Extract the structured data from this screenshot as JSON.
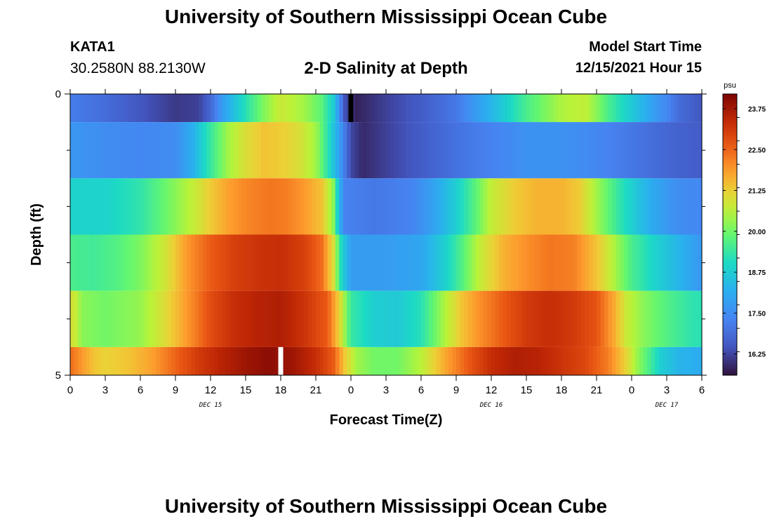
{
  "page": {
    "title_top": "University of Southern Mississippi Ocean Cube",
    "title_bottom": "University of Southern Mississippi Ocean Cube",
    "station": {
      "name": "KATA1",
      "coords": "30.2580N  88.2130W"
    },
    "subtitle": "2-D Salinity at Depth",
    "model": {
      "label": "Model Start Time",
      "time": "12/15/2021 Hour 15"
    }
  },
  "chart_data": {
    "type": "heatmap",
    "title": "2-D Salinity at Depth",
    "xlabel": "Forecast Time(Z)",
    "ylabel": "Depth (ft)",
    "x_hours_range": [
      0,
      54
    ],
    "x_tick_hours": [
      0,
      3,
      6,
      9,
      12,
      15,
      18,
      21,
      24,
      27,
      30,
      33,
      36,
      39,
      42,
      45,
      48,
      51,
      54
    ],
    "x_tick_labels": [
      "0",
      "3",
      "6",
      "9",
      "12",
      "15",
      "18",
      "21",
      "0",
      "3",
      "6",
      "9",
      "12",
      "15",
      "18",
      "21",
      "0",
      "3",
      "6"
    ],
    "date_labels": [
      {
        "text": "DEC 15",
        "hour": 12
      },
      {
        "text": "DEC 16",
        "hour": 36
      },
      {
        "text": "DEC 17",
        "hour": 51
      }
    ],
    "y_range": [
      0,
      5
    ],
    "y_tick_labels": [
      "0",
      "5"
    ],
    "y_minor_ticks": [
      1,
      2,
      3,
      4
    ],
    "colorbar": {
      "unit": "psu",
      "min": 15.6,
      "max": 24.2,
      "tick_values": [
        16.25,
        17.5,
        18.75,
        20.0,
        21.25,
        22.5,
        23.75
      ],
      "tick_labels": [
        "16.25",
        "17.50",
        "18.75",
        "20.00",
        "21.25",
        "22.50",
        "23.75"
      ]
    },
    "missing_marks": [
      {
        "hour": 24,
        "layer": 0,
        "color": "#000000"
      },
      {
        "hour": 18,
        "layer": 5,
        "color": "#ffffff"
      }
    ],
    "layers": [
      {
        "depth_range": [
          0,
          0.5
        ],
        "knots": [
          [
            0,
            17.2
          ],
          [
            3,
            16.9
          ],
          [
            6,
            16.5
          ],
          [
            9,
            16.1
          ],
          [
            11,
            16.2
          ],
          [
            12,
            16.8
          ],
          [
            13,
            17.8
          ],
          [
            15,
            19.2
          ],
          [
            16.5,
            20.1
          ],
          [
            18,
            20.8
          ],
          [
            20,
            20.4
          ],
          [
            21.5,
            19.8
          ],
          [
            22.5,
            18.8
          ],
          [
            23.5,
            16.4
          ],
          [
            24.5,
            15.8
          ],
          [
            27,
            16.2
          ],
          [
            30,
            16.6
          ],
          [
            33,
            17.1
          ],
          [
            36,
            18.3
          ],
          [
            39,
            19.6
          ],
          [
            42,
            20.5
          ],
          [
            44,
            20.7
          ],
          [
            45,
            20.2
          ],
          [
            46,
            19.6
          ],
          [
            48,
            18.7
          ],
          [
            50,
            17.8
          ],
          [
            51,
            17.4
          ],
          [
            52,
            16.9
          ],
          [
            54,
            16.5
          ]
        ]
      },
      {
        "depth_range": [
          0.5,
          1.5
        ],
        "knots": [
          [
            0,
            17.7
          ],
          [
            3,
            17.5
          ],
          [
            6,
            17.4
          ],
          [
            9,
            17.5
          ],
          [
            10.5,
            18.2
          ],
          [
            12,
            19.4
          ],
          [
            13.5,
            20.4
          ],
          [
            15,
            21.0
          ],
          [
            16.5,
            21.4
          ],
          [
            18,
            21.3
          ],
          [
            19.5,
            21.0
          ],
          [
            21,
            20.4
          ],
          [
            22,
            19.3
          ],
          [
            23,
            17.9
          ],
          [
            24,
            16.3
          ],
          [
            25,
            15.9
          ],
          [
            27,
            16.2
          ],
          [
            30,
            16.6
          ],
          [
            33,
            17.0
          ],
          [
            36,
            17.3
          ],
          [
            39,
            17.6
          ],
          [
            42,
            17.6
          ],
          [
            45,
            17.4
          ],
          [
            48,
            17.1
          ],
          [
            50,
            16.9
          ],
          [
            52,
            16.7
          ],
          [
            54,
            16.6
          ]
        ]
      },
      {
        "depth_range": [
          1.5,
          2.5
        ],
        "knots": [
          [
            0,
            18.9
          ],
          [
            3,
            18.9
          ],
          [
            6,
            19.3
          ],
          [
            9,
            20.2
          ],
          [
            10.5,
            20.7
          ],
          [
            12,
            21.3
          ],
          [
            13.5,
            21.8
          ],
          [
            15,
            22.1
          ],
          [
            17,
            22.3
          ],
          [
            18.5,
            22.2
          ],
          [
            20,
            21.9
          ],
          [
            21.5,
            21.4
          ],
          [
            22.5,
            20.2
          ],
          [
            23,
            18.3
          ],
          [
            23.5,
            17.3
          ],
          [
            26,
            17.1
          ],
          [
            29,
            17.3
          ],
          [
            31,
            17.9
          ],
          [
            33,
            18.8
          ],
          [
            34.5,
            19.7
          ],
          [
            36,
            20.7
          ],
          [
            38,
            21.3
          ],
          [
            40,
            21.6
          ],
          [
            42,
            21.6
          ],
          [
            43.5,
            21.3
          ],
          [
            45,
            20.4
          ],
          [
            47,
            19.3
          ],
          [
            48.5,
            18.6
          ],
          [
            50,
            18.0
          ],
          [
            52,
            17.5
          ],
          [
            54,
            17.4
          ]
        ]
      },
      {
        "depth_range": [
          2.5,
          3.5
        ],
        "knots": [
          [
            0,
            19.6
          ],
          [
            2,
            19.5
          ],
          [
            4,
            19.7
          ],
          [
            6,
            20.1
          ],
          [
            8,
            20.8
          ],
          [
            10,
            21.9
          ],
          [
            12,
            22.6
          ],
          [
            14,
            23.0
          ],
          [
            16,
            23.2
          ],
          [
            18,
            23.3
          ],
          [
            20,
            23.0
          ],
          [
            21.5,
            22.4
          ],
          [
            22.5,
            21.0
          ],
          [
            23.2,
            19.0
          ],
          [
            24,
            17.8
          ],
          [
            27,
            17.8
          ],
          [
            30,
            18.0
          ],
          [
            32,
            18.8
          ],
          [
            33.5,
            19.7
          ],
          [
            35,
            20.7
          ],
          [
            37,
            21.6
          ],
          [
            39,
            22.0
          ],
          [
            41,
            22.3
          ],
          [
            43,
            22.2
          ],
          [
            45,
            21.4
          ],
          [
            46.5,
            20.5
          ],
          [
            48,
            19.6
          ],
          [
            50,
            18.9
          ],
          [
            52,
            18.3
          ],
          [
            54,
            17.7
          ]
        ]
      },
      {
        "depth_range": [
          3.5,
          4.5
        ],
        "knots": [
          [
            0,
            21.0
          ],
          [
            0.5,
            20.7
          ],
          [
            1,
            20.2
          ],
          [
            3,
            20.0
          ],
          [
            6,
            20.3
          ],
          [
            8,
            21.0
          ],
          [
            10,
            21.9
          ],
          [
            12,
            22.8
          ],
          [
            14,
            23.3
          ],
          [
            16,
            23.5
          ],
          [
            18,
            23.6
          ],
          [
            20,
            23.2
          ],
          [
            22,
            22.6
          ],
          [
            23,
            21.2
          ],
          [
            24,
            19.4
          ],
          [
            26,
            18.8
          ],
          [
            28,
            18.7
          ],
          [
            30,
            19.2
          ],
          [
            32,
            20.5
          ],
          [
            33.5,
            21.4
          ],
          [
            35,
            22.0
          ],
          [
            37,
            22.6
          ],
          [
            39,
            23.1
          ],
          [
            41,
            23.3
          ],
          [
            43,
            23.1
          ],
          [
            45,
            22.7
          ],
          [
            46.5,
            21.7
          ],
          [
            47.5,
            20.8
          ],
          [
            49,
            20.2
          ],
          [
            51,
            19.7
          ],
          [
            53,
            19.3
          ],
          [
            54,
            19.2
          ]
        ]
      },
      {
        "depth_range": [
          4.5,
          5
        ],
        "knots": [
          [
            0,
            22.4
          ],
          [
            1,
            21.9
          ],
          [
            2,
            21.4
          ],
          [
            3,
            21.2
          ],
          [
            5,
            21.4
          ],
          [
            7,
            21.8
          ],
          [
            9,
            22.5
          ],
          [
            11,
            23.1
          ],
          [
            13,
            23.5
          ],
          [
            15,
            23.8
          ],
          [
            17,
            24.0
          ],
          [
            19,
            23.8
          ],
          [
            21,
            23.3
          ],
          [
            22.5,
            22.6
          ],
          [
            23.5,
            21.3
          ],
          [
            24.5,
            20.4
          ],
          [
            26,
            20.0
          ],
          [
            28,
            20.0
          ],
          [
            30,
            20.6
          ],
          [
            32,
            21.7
          ],
          [
            34,
            22.6
          ],
          [
            36,
            23.3
          ],
          [
            38,
            23.6
          ],
          [
            40,
            23.5
          ],
          [
            42,
            23.2
          ],
          [
            44,
            22.9
          ],
          [
            46,
            22.2
          ],
          [
            47.5,
            21.2
          ],
          [
            48.5,
            20.3
          ],
          [
            49.5,
            19.6
          ],
          [
            50.5,
            18.8
          ],
          [
            52,
            18.3
          ],
          [
            54,
            18.1
          ]
        ]
      }
    ]
  }
}
